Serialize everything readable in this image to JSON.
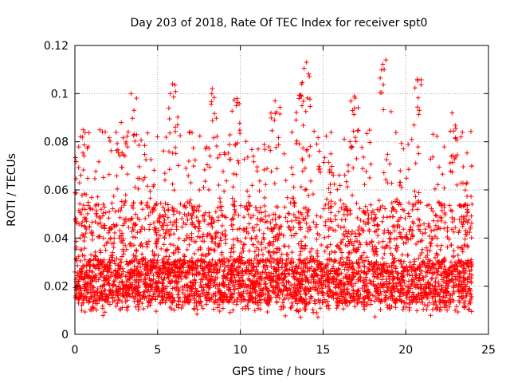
{
  "chart_data": {
    "type": "scatter",
    "title": "Day 203 of 2018, Rate Of TEC Index for receiver spt0",
    "xlabel": "GPS time / hours",
    "ylabel": "ROTI / TECUs",
    "xlim": [
      0,
      25
    ],
    "ylim": [
      0,
      0.12
    ],
    "x_ticks": [
      0,
      5,
      10,
      15,
      20,
      25
    ],
    "x_tick_labels": [
      "0",
      "5",
      "10",
      "15",
      "20",
      "25"
    ],
    "y_ticks": [
      0,
      0.02,
      0.04,
      0.06,
      0.08,
      0.1,
      0.12
    ],
    "y_tick_labels": [
      "0",
      "0.02",
      "0.04",
      "0.06",
      "0.08",
      "0.1",
      "0.12"
    ],
    "grid": true,
    "marker": "+",
    "color": "#ff0000",
    "series": [
      {
        "name": "ROTI",
        "x_range": [
          0,
          24
        ],
        "typical_range": [
          0.007,
          0.075
        ],
        "peaks": [
          {
            "x": 0.5,
            "y": 0.085
          },
          {
            "x": 2.8,
            "y": 0.088
          },
          {
            "x": 3.4,
            "y": 0.1
          },
          {
            "x": 5.9,
            "y": 0.104
          },
          {
            "x": 8.3,
            "y": 0.102
          },
          {
            "x": 9.8,
            "y": 0.098
          },
          {
            "x": 12.1,
            "y": 0.097
          },
          {
            "x": 13.7,
            "y": 0.104
          },
          {
            "x": 14.0,
            "y": 0.113
          },
          {
            "x": 16.9,
            "y": 0.099
          },
          {
            "x": 18.8,
            "y": 0.114
          },
          {
            "x": 20.7,
            "y": 0.106
          },
          {
            "x": 22.8,
            "y": 0.092
          },
          {
            "x": 23.7,
            "y": 0.063
          }
        ]
      }
    ]
  }
}
